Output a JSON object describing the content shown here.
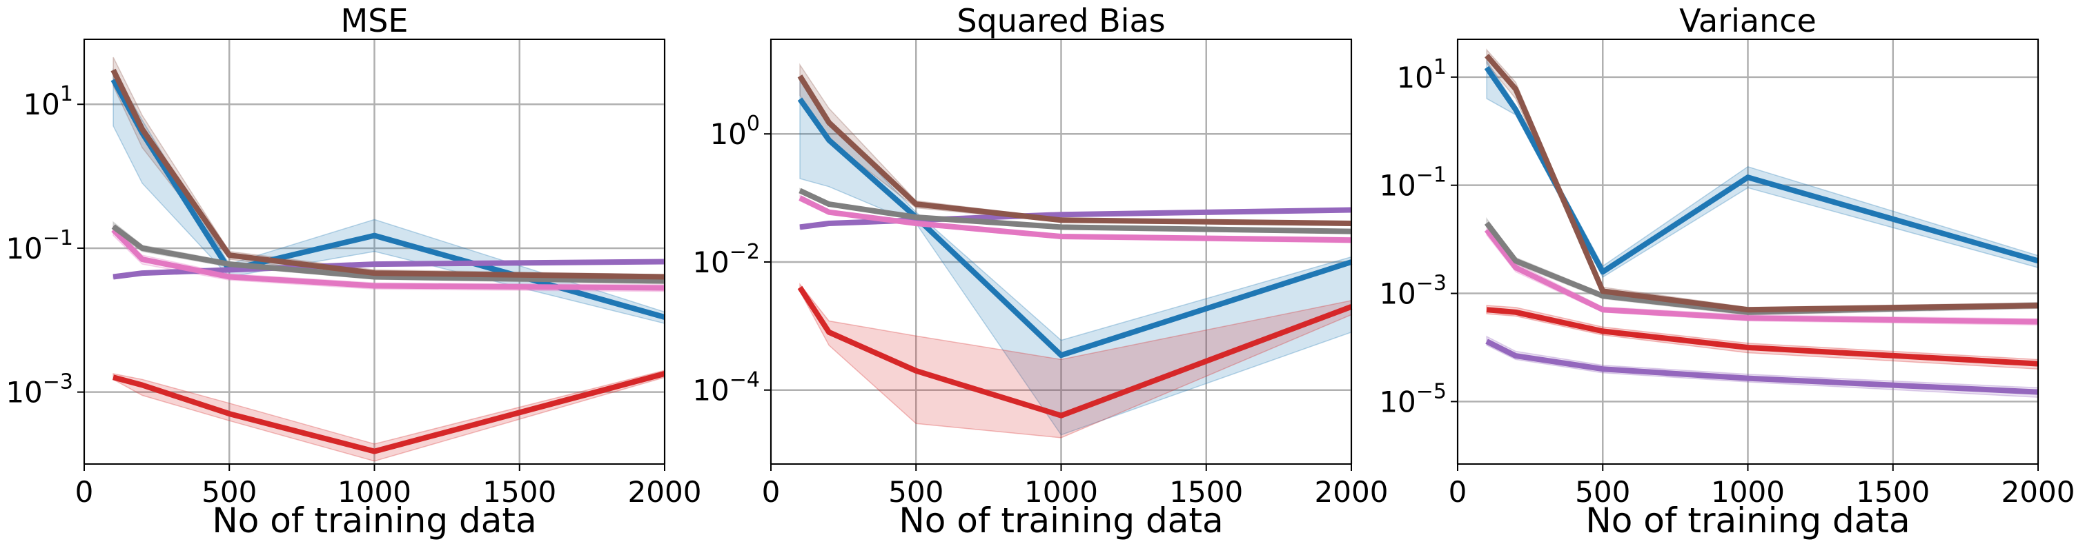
{
  "chart_data": [
    {
      "type": "line",
      "title": "MSE",
      "xlabel": "No of training data",
      "ylabel": "",
      "yscale": "log",
      "xlim": [
        0,
        2000
      ],
      "ylim": [
        0.0001,
        80
      ],
      "xticks": [
        0,
        500,
        1000,
        1500,
        2000
      ],
      "xtick_labels": [
        "0",
        "500",
        "1000",
        "1500",
        "2000"
      ],
      "yticks": [
        {
          "base": "10",
          "exp": "1",
          "value": 10
        },
        {
          "base": "10",
          "exp": "−1",
          "value": 0.1
        },
        {
          "base": "10",
          "exp": "−3",
          "value": 0.001
        }
      ],
      "grid": true,
      "x": [
        100,
        200,
        500,
        1000,
        2000
      ],
      "series": [
        {
          "color": "#1f77b4",
          "values": [
            22,
            4,
            0.05,
            0.15,
            0.011
          ],
          "lower": [
            5,
            0.8,
            0.04,
            0.09,
            0.009
          ],
          "upper": [
            30,
            6,
            0.06,
            0.25,
            0.013
          ]
        },
        {
          "color": "#d62728",
          "values": [
            0.0016,
            0.00125,
            0.0005,
            0.00015,
            0.0018
          ],
          "lower": [
            0.0015,
            0.0009,
            0.0004,
            0.00011,
            0.0016
          ],
          "upper": [
            0.0018,
            0.0015,
            0.0007,
            0.00019,
            0.002
          ]
        },
        {
          "color": "#9467bd",
          "values": [
            0.04,
            0.045,
            0.05,
            0.06,
            0.065
          ],
          "lower": [
            0.038,
            0.043,
            0.048,
            0.057,
            0.062
          ],
          "upper": [
            0.042,
            0.047,
            0.052,
            0.063,
            0.068
          ]
        },
        {
          "color": "#e377c2",
          "values": [
            0.18,
            0.07,
            0.04,
            0.03,
            0.028
          ],
          "lower": [
            0.15,
            0.06,
            0.036,
            0.027,
            0.025
          ],
          "upper": [
            0.2,
            0.08,
            0.044,
            0.033,
            0.031
          ]
        },
        {
          "color": "#7f7f7f",
          "values": [
            0.2,
            0.1,
            0.06,
            0.04,
            0.035
          ],
          "lower": [
            0.17,
            0.09,
            0.055,
            0.037,
            0.032
          ],
          "upper": [
            0.23,
            0.11,
            0.065,
            0.043,
            0.038
          ]
        },
        {
          "color": "#8c564b",
          "values": [
            30,
            4.5,
            0.08,
            0.045,
            0.04
          ],
          "lower": [
            18,
            2.5,
            0.07,
            0.04,
            0.037
          ],
          "upper": [
            45,
            7,
            0.09,
            0.05,
            0.043
          ]
        }
      ]
    },
    {
      "type": "line",
      "title": "Squared Bias",
      "xlabel": "No of training data",
      "ylabel": "",
      "yscale": "log",
      "xlim": [
        0,
        2000
      ],
      "ylim": [
        7e-06,
        30
      ],
      "xticks": [
        0,
        500,
        1000,
        1500,
        2000
      ],
      "xtick_labels": [
        "0",
        "500",
        "1000",
        "1500",
        "2000"
      ],
      "yticks": [
        {
          "base": "10",
          "exp": "0",
          "value": 1
        },
        {
          "base": "10",
          "exp": "−2",
          "value": 0.01
        },
        {
          "base": "10",
          "exp": "−4",
          "value": 0.0001
        }
      ],
      "grid": true,
      "x": [
        100,
        200,
        500,
        1000,
        2000
      ],
      "series": [
        {
          "color": "#1f77b4",
          "values": [
            3.5,
            0.8,
            0.05,
            0.00035,
            0.01
          ],
          "lower": [
            0.2,
            0.15,
            0.04,
            2e-05,
            0.0008
          ],
          "upper": [
            7,
            1.6,
            0.06,
            0.0006,
            0.012
          ]
        },
        {
          "color": "#d62728",
          "values": [
            0.004,
            0.0008,
            0.0002,
            4e-05,
            0.002
          ],
          "lower": [
            0.0035,
            0.0005,
            3e-05,
            1.8e-05,
            0.0015
          ],
          "upper": [
            0.0045,
            0.0012,
            0.0007,
            0.0003,
            0.0025
          ]
        },
        {
          "color": "#9467bd",
          "values": [
            0.035,
            0.04,
            0.045,
            0.055,
            0.065
          ],
          "lower": [
            0.033,
            0.038,
            0.043,
            0.052,
            0.062
          ],
          "upper": [
            0.037,
            0.042,
            0.047,
            0.058,
            0.068
          ]
        },
        {
          "color": "#e377c2",
          "values": [
            0.1,
            0.06,
            0.04,
            0.025,
            0.022
          ],
          "lower": [
            0.09,
            0.055,
            0.037,
            0.023,
            0.02
          ],
          "upper": [
            0.11,
            0.065,
            0.043,
            0.027,
            0.024
          ]
        },
        {
          "color": "#7f7f7f",
          "values": [
            0.13,
            0.08,
            0.05,
            0.035,
            0.03
          ],
          "lower": [
            0.12,
            0.075,
            0.047,
            0.033,
            0.028
          ],
          "upper": [
            0.14,
            0.085,
            0.053,
            0.037,
            0.032
          ]
        },
        {
          "color": "#8c564b",
          "values": [
            8,
            1.5,
            0.08,
            0.045,
            0.04
          ],
          "lower": [
            4,
            0.8,
            0.07,
            0.042,
            0.037
          ],
          "upper": [
            12,
            2.5,
            0.09,
            0.048,
            0.043
          ]
        }
      ]
    },
    {
      "type": "line",
      "title": "Variance",
      "xlabel": "No of training data",
      "ylabel": "",
      "yscale": "log",
      "xlim": [
        0,
        2000
      ],
      "ylim": [
        7e-07,
        50
      ],
      "xticks": [
        0,
        500,
        1000,
        1500,
        2000
      ],
      "xtick_labels": [
        "0",
        "500",
        "1000",
        "1500",
        "2000"
      ],
      "yticks": [
        {
          "base": "10",
          "exp": "1",
          "value": 10
        },
        {
          "base": "10",
          "exp": "−1",
          "value": 0.1
        },
        {
          "base": "10",
          "exp": "−3",
          "value": 0.001
        },
        {
          "base": "10",
          "exp": "−5",
          "value": 1e-05
        }
      ],
      "grid": true,
      "x": [
        100,
        200,
        500,
        1000,
        2000
      ],
      "series": [
        {
          "color": "#1f77b4",
          "values": [
            15,
            2.5,
            0.0025,
            0.14,
            0.004
          ],
          "lower": [
            4,
            2.0,
            0.002,
            0.09,
            0.003
          ],
          "upper": [
            20,
            3,
            0.0032,
            0.22,
            0.005
          ]
        },
        {
          "color": "#d62728",
          "values": [
            0.0005,
            0.00045,
            0.0002,
            0.0001,
            5e-05
          ],
          "lower": [
            0.00042,
            0.00038,
            0.00017,
            8e-05,
            4e-05
          ],
          "upper": [
            0.0006,
            0.00055,
            0.00024,
            0.00012,
            6e-05
          ]
        },
        {
          "color": "#9467bd",
          "values": [
            0.00013,
            7e-05,
            4e-05,
            2.7e-05,
            1.5e-05
          ],
          "lower": [
            0.00011,
            6e-05,
            3.4e-05,
            2.3e-05,
            1.2e-05
          ],
          "upper": [
            0.00016,
            8.5e-05,
            4.7e-05,
            3.2e-05,
            1.8e-05
          ]
        },
        {
          "color": "#e377c2",
          "values": [
            0.015,
            0.003,
            0.0005,
            0.00035,
            0.0003
          ],
          "lower": [
            0.012,
            0.0025,
            0.00045,
            0.00031,
            0.00026
          ],
          "upper": [
            0.018,
            0.0036,
            0.00056,
            0.0004,
            0.00034
          ]
        },
        {
          "color": "#7f7f7f",
          "values": [
            0.02,
            0.004,
            0.0009,
            0.00045,
            0.0006
          ],
          "lower": [
            0.017,
            0.0035,
            0.0008,
            0.0004,
            0.00053
          ],
          "upper": [
            0.024,
            0.0046,
            0.001,
            0.0005,
            0.00068
          ]
        },
        {
          "color": "#8c564b",
          "values": [
            25,
            6,
            0.0011,
            0.0005,
            0.0006
          ],
          "lower": [
            18,
            4,
            0.00095,
            0.00045,
            0.00053
          ],
          "upper": [
            32,
            8,
            0.0013,
            0.00055,
            0.00067
          ]
        }
      ]
    }
  ]
}
